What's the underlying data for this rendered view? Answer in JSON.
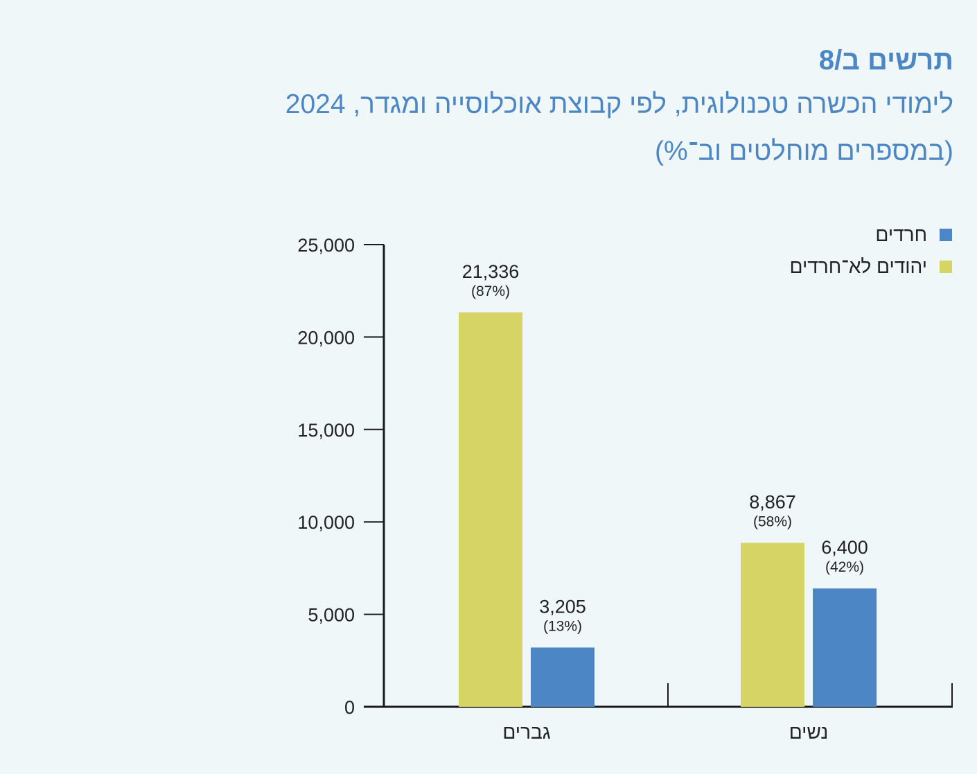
{
  "heading": {
    "figure_label": "תרשים ב/8",
    "title_line1": "לימודי הכשרה טכנולוגית, לפי קבוצת אוכלוסייה ומגדר, 2024",
    "title_line2": "(במספרים מוחלטים וב־%)"
  },
  "colors": {
    "haredim": "#4d86c4",
    "non_haredi_jews": "#d5d464",
    "axis": "#1a1a1a",
    "heading": "#4d86c4"
  },
  "chart_data": {
    "type": "bar",
    "title": "לימודי הכשרה טכנולוגית, לפי קבוצת אוכלוסייה ומגדר, 2024",
    "xlabel": "",
    "ylabel": "",
    "ylim": [
      0,
      25000
    ],
    "yticks": [
      0,
      5000,
      10000,
      15000,
      20000,
      25000
    ],
    "ytick_labels": [
      "0",
      "5,000",
      "10,000",
      "15,000",
      "20,000",
      "25,000"
    ],
    "categories": [
      "גברים",
      "נשים"
    ],
    "legend_position": "top-right",
    "series": [
      {
        "name": "יהודים לא־חרדים",
        "color": "#d5d464",
        "values": [
          21336,
          8867
        ],
        "value_labels": [
          "21,336",
          "8,867"
        ],
        "percent_labels": [
          "(87%)",
          "(58%)"
        ]
      },
      {
        "name": "חרדים",
        "color": "#4d86c4",
        "values": [
          3205,
          6400
        ],
        "value_labels": [
          "3,205",
          "6,400"
        ],
        "percent_labels": [
          "(13%)",
          "(42%)"
        ]
      }
    ]
  }
}
